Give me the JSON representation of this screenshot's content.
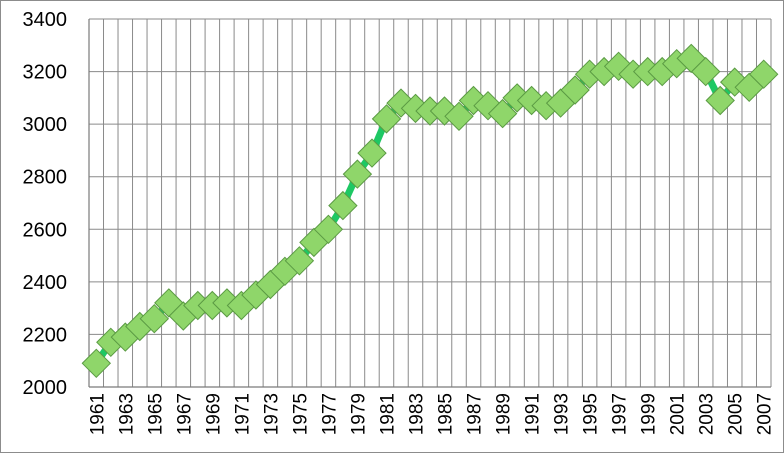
{
  "chart_data": {
    "type": "line",
    "title": "",
    "xlabel": "",
    "ylabel": "",
    "ylim": [
      2000,
      3400
    ],
    "yticks": [
      "2000",
      "2200",
      "2400",
      "2600",
      "2800",
      "3000",
      "3200",
      "3400"
    ],
    "x_tick_labels": [
      "1961",
      "1963",
      "1965",
      "1967",
      "1969",
      "1971",
      "1973",
      "1975",
      "1977",
      "1979",
      "1981",
      "1983",
      "1985",
      "1987",
      "1989",
      "1991",
      "1993",
      "1995",
      "1997",
      "1999",
      "2001",
      "2003",
      "2005",
      "2007"
    ],
    "grid": true,
    "legend": "none",
    "series": [
      {
        "line_color": "#1ec864",
        "marker_fill": "#8fd66a",
        "marker_stroke": "#5a9a43",
        "marker": "diamond",
        "x": [
          1961,
          1962,
          1963,
          1964,
          1965,
          1966,
          1967,
          1968,
          1969,
          1970,
          1971,
          1972,
          1973,
          1974,
          1975,
          1976,
          1977,
          1978,
          1979,
          1980,
          1981,
          1982,
          1983,
          1984,
          1985,
          1986,
          1987,
          1988,
          1989,
          1990,
          1991,
          1992,
          1993,
          1994,
          1995,
          1996,
          1997,
          1998,
          1999,
          2000,
          2001,
          2002,
          2003,
          2004,
          2005,
          2006,
          2007
        ],
        "values": [
          2090,
          2170,
          2190,
          2230,
          2260,
          2320,
          2270,
          2310,
          2310,
          2320,
          2310,
          2350,
          2390,
          2440,
          2480,
          2550,
          2600,
          2690,
          2810,
          2890,
          3020,
          3080,
          3060,
          3050,
          3050,
          3030,
          3090,
          3070,
          3040,
          3100,
          3090,
          3070,
          3080,
          3130,
          3190,
          3200,
          3220,
          3190,
          3200,
          3200,
          3230,
          3250,
          3200,
          3090,
          3160,
          3140,
          3190
        ]
      }
    ]
  }
}
